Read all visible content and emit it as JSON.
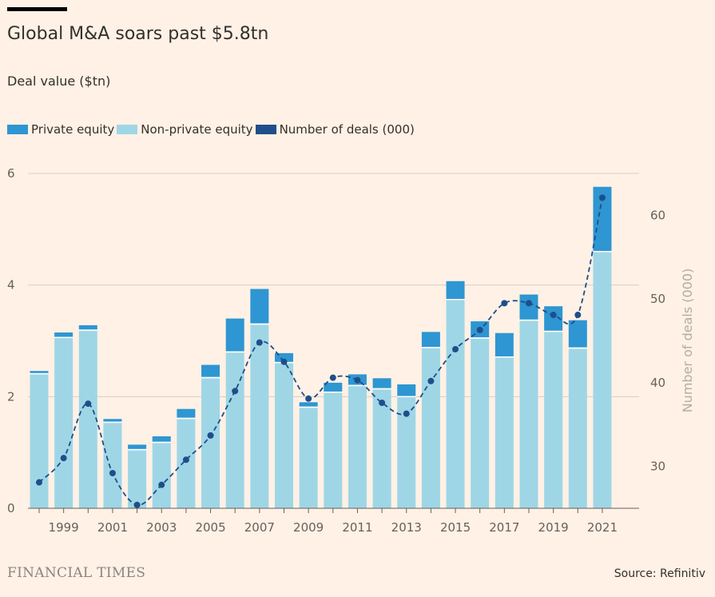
{
  "header": {
    "title": "Global M&A soars past $5.8tn",
    "subtitle": "Deal value ($tn)"
  },
  "legend": [
    {
      "label": "Private equity",
      "color": "#2E96D2"
    },
    {
      "label": "Non-private equity",
      "color": "#9FD6E6"
    },
    {
      "label": "Number of deals (000)",
      "color": "#1F4E8A"
    }
  ],
  "footer": {
    "brand": "FINANCIAL TIMES",
    "source": "Source: Refinitiv"
  },
  "colors": {
    "private_equity": "#2E96D2",
    "non_private_equity": "#9FD6E6",
    "deals_line": "#1F4E8A",
    "background": "#FFF1E5",
    "grid": "#D9CEC4"
  },
  "chart_data": {
    "type": "bar",
    "stacked": true,
    "x": [
      1998,
      1999,
      2000,
      2001,
      2002,
      2003,
      2004,
      2005,
      2006,
      2007,
      2008,
      2009,
      2010,
      2011,
      2012,
      2013,
      2014,
      2015,
      2016,
      2017,
      2018,
      2019,
      2020,
      2021
    ],
    "x_tick_labels": [
      "1999",
      "2001",
      "2003",
      "2005",
      "2007",
      "2009",
      "2011",
      "2013",
      "2015",
      "2017",
      "2019",
      "2021"
    ],
    "series": [
      {
        "name": "Non-private equity",
        "values": [
          2.4,
          3.05,
          3.18,
          1.53,
          1.04,
          1.17,
          1.6,
          2.33,
          2.79,
          3.29,
          2.6,
          1.8,
          2.07,
          2.19,
          2.13,
          1.99,
          2.87,
          3.73,
          3.04,
          2.7,
          3.36,
          3.16,
          2.86,
          4.59
        ]
      },
      {
        "name": "Private equity",
        "values": [
          0.06,
          0.1,
          0.1,
          0.07,
          0.1,
          0.12,
          0.18,
          0.24,
          0.61,
          0.64,
          0.18,
          0.1,
          0.18,
          0.21,
          0.2,
          0.23,
          0.29,
          0.34,
          0.31,
          0.44,
          0.47,
          0.46,
          0.51,
          1.17
        ]
      }
    ],
    "secondary_series": {
      "name": "Number of deals (000)",
      "axis": "right",
      "values": [
        28.1,
        31.0,
        37.5,
        29.2,
        25.4,
        27.8,
        30.8,
        33.7,
        39.0,
        44.8,
        42.5,
        38.1,
        40.6,
        40.3,
        37.6,
        36.3,
        40.2,
        44.0,
        46.3,
        49.5,
        49.5,
        48.1,
        48.1,
        62.1
      ]
    },
    "ylabel": "Deal value ($tn)",
    "ylim": [
      0,
      6
    ],
    "yticks": [
      0,
      2,
      4,
      6
    ],
    "y2label": "Number of deals (000)",
    "y2lim": [
      25,
      65
    ],
    "y2ticks": [
      30,
      40,
      50,
      60
    ],
    "grid": true,
    "legend_position": "top-left"
  }
}
